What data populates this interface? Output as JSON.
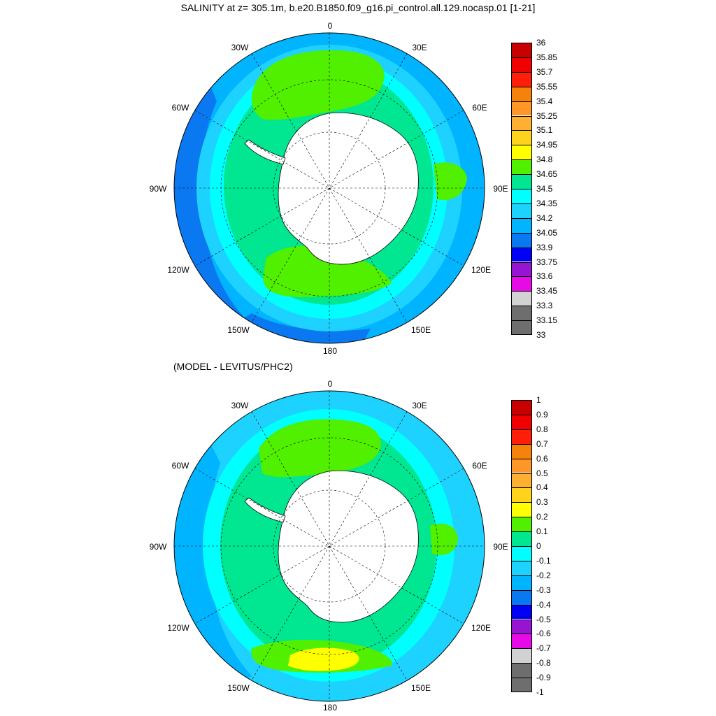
{
  "header": {
    "title": "SALINITY at z= 305.1m, b.e20.B1850.f09_g16.pi_control.all.129.nocasp.01 [1-21]",
    "subtitle": "(MODEL - LEVITUS/PHC2)"
  },
  "longitude_labels": [
    "0",
    "30E",
    "60E",
    "90E",
    "120E",
    "150E",
    "180",
    "150W",
    "120W",
    "90W",
    "60W",
    "30W"
  ],
  "colors": {
    "palette": [
      "#6e6e6e",
      "#d2d2d2",
      "#e60ae6",
      "#9614d2",
      "#0000f5",
      "#0a78f0",
      "#00b4ff",
      "#1ed2ff",
      "#00ffff",
      "#00e691",
      "#50f000",
      "#ffff00",
      "#ffd21e",
      "#ffaf32",
      "#ff9628",
      "#f5820a",
      "#ff1e0a",
      "#f00000",
      "#c80000"
    ],
    "land": "#ffffff",
    "coast": "#000000"
  },
  "top_map": {
    "colorbar_labels": [
      "36",
      "35.85",
      "35.7",
      "35.55",
      "35.4",
      "35.25",
      "35.1",
      "34.95",
      "34.8",
      "34.65",
      "34.5",
      "34.35",
      "34.2",
      "34.05",
      "33.9",
      "33.75",
      "33.6",
      "33.45",
      "33.3",
      "33.15",
      "33"
    ]
  },
  "bottom_map": {
    "colorbar_labels": [
      "1",
      "0.9",
      "0.8",
      "0.7",
      "0.6",
      "0.5",
      "0.4",
      "0.3",
      "0.2",
      "0.1",
      "0",
      "-0.1",
      "-0.2",
      "-0.3",
      "-0.4",
      "-0.5",
      "-0.6",
      "-0.7",
      "-0.8",
      "-0.9",
      "-1"
    ]
  }
}
